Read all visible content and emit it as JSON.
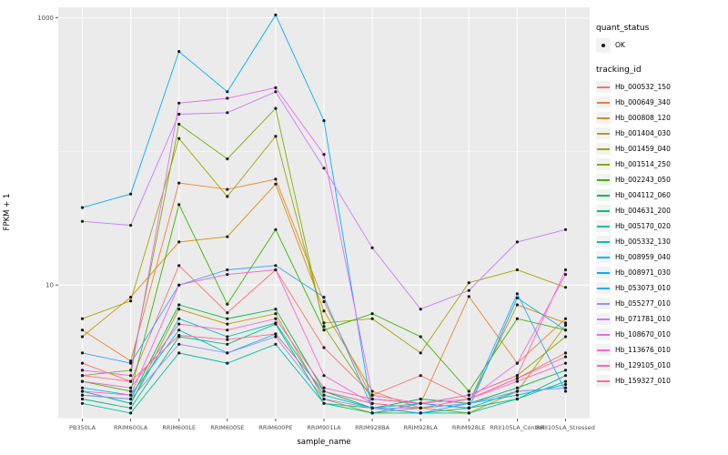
{
  "figure": {
    "bg": "#FFFFFF",
    "panel_bg": "#EBEBEB",
    "grid_color": "#FFFFFF",
    "tick_text_color": "#4D4D4D",
    "point_color": "#1A1A1A"
  },
  "chart_data": {
    "type": "line",
    "title": "",
    "xlabel": "sample_name",
    "ylabel": "FPKM + 1",
    "y_scale": "log10",
    "ylim": [
      1,
      1200
    ],
    "grid": true,
    "legend_position": "right",
    "y_major_ticks": [
      10,
      1000
    ],
    "y_tick_labels": [
      "10",
      "1000"
    ],
    "y_minor_ticks": [
      1,
      100
    ],
    "categories": [
      "PB350LA",
      "RRIM600LA",
      "RRIM600LE",
      "RRIM600SE",
      "RRIM600PE",
      "RRIM901LA",
      "RRIM928BA",
      "RRIM928LA",
      "RRIM928LE",
      "RRII105LA_Control",
      "RRII105LA_Stressed"
    ],
    "series": [
      {
        "name": "Hb_000532_150",
        "color": "#F8766D",
        "values": [
          2.6,
          1.9,
          14,
          6.2,
          13,
          3.4,
          1.5,
          2.1,
          1.4,
          2.0,
          3.1
        ]
      },
      {
        "name": "Hb_000649_340",
        "color": "#EA8331",
        "values": [
          4.6,
          2.7,
          58,
          52,
          62,
          7.5,
          1.4,
          1.3,
          8.2,
          2.6,
          5.6
        ]
      },
      {
        "name": "Hb_000808_120",
        "color": "#D89000",
        "values": [
          4.1,
          8.1,
          21,
          23,
          57,
          6.4,
          1.6,
          1.2,
          1.3,
          7.1,
          5.2
        ]
      },
      {
        "name": "Hb_001404_030",
        "color": "#C09B00",
        "values": [
          1.6,
          1.3,
          6.6,
          5.1,
          6.1,
          1.4,
          1.1,
          1.2,
          1.1,
          1.6,
          5.0
        ]
      },
      {
        "name": "Hb_001459_040",
        "color": "#A3A500",
        "values": [
          5.6,
          7.6,
          125,
          46,
          130,
          5.2,
          5.6,
          3.1,
          10.4,
          13,
          9.6
        ]
      },
      {
        "name": "Hb_001514_250",
        "color": "#7CAE00",
        "values": [
          2.1,
          2.3,
          160,
          88,
          210,
          4.9,
          1.4,
          1.3,
          1.5,
          2.1,
          4.1
        ]
      },
      {
        "name": "Hb_002243_050",
        "color": "#39B600",
        "values": [
          1.9,
          1.6,
          40,
          7.2,
          26,
          4.6,
          6.1,
          4.1,
          1.6,
          5.6,
          4.6
        ]
      },
      {
        "name": "Hb_004112_060",
        "color": "#00BB4E",
        "values": [
          1.5,
          1.4,
          7.1,
          5.6,
          6.6,
          1.6,
          1.2,
          1.4,
          1.3,
          1.7,
          2.3
        ]
      },
      {
        "name": "Hb_004631_200",
        "color": "#00BF7D",
        "values": [
          1.4,
          1.2,
          4.1,
          3.6,
          5.1,
          1.3,
          1.1,
          1.1,
          1.2,
          1.4,
          2.1
        ]
      },
      {
        "name": "Hb_005170_020",
        "color": "#00C1A3",
        "values": [
          1.3,
          1.1,
          3.1,
          2.6,
          3.6,
          1.3,
          1.2,
          1.1,
          1.1,
          1.4,
          1.9
        ]
      },
      {
        "name": "Hb_005332_130",
        "color": "#00BFC4",
        "values": [
          1.6,
          1.3,
          5.6,
          4.1,
          5.2,
          1.5,
          1.2,
          1.3,
          1.2,
          1.6,
          1.7
        ]
      },
      {
        "name": "Hb_008959_040",
        "color": "#00BAE0",
        "values": [
          1.7,
          1.5,
          4.6,
          3.1,
          4.3,
          1.6,
          1.3,
          1.2,
          1.3,
          1.5,
          1.8
        ]
      },
      {
        "name": "Hb_008971_030",
        "color": "#00B0F6",
        "values": [
          38,
          48,
          560,
          280,
          1050,
          170,
          1.1,
          1.3,
          1.2,
          8.0,
          4.6
        ]
      },
      {
        "name": "Hb_053073_010",
        "color": "#35A2FF",
        "values": [
          3.1,
          2.6,
          10,
          13,
          14,
          8.1,
          1.2,
          1.1,
          1.3,
          8.6,
          1.6
        ]
      },
      {
        "name": "Hb_055277_010",
        "color": "#9590FF",
        "values": [
          1.5,
          1.4,
          3.6,
          3.1,
          4.1,
          1.4,
          1.2,
          1.2,
          1.3,
          1.6,
          1.7
        ]
      },
      {
        "name": "Hb_071781_010",
        "color": "#C77CFF",
        "values": [
          30,
          28,
          190,
          195,
          280,
          75,
          19,
          6.6,
          9.1,
          21,
          26
        ]
      },
      {
        "name": "Hb_108670_010",
        "color": "#E76BF3",
        "values": [
          2.3,
          2.1,
          230,
          250,
          300,
          95,
          1.5,
          1.3,
          1.4,
          2.6,
          12
        ]
      },
      {
        "name": "Hb_113676_010",
        "color": "#FA62DB",
        "values": [
          1.6,
          1.5,
          10,
          12,
          13,
          2.1,
          1.3,
          1.2,
          1.4,
          1.9,
          2.6
        ]
      },
      {
        "name": "Hb_129105_010",
        "color": "#FF62BC",
        "values": [
          1.9,
          1.7,
          5.1,
          4.6,
          5.6,
          1.7,
          1.4,
          1.3,
          1.5,
          2.1,
          13
        ]
      },
      {
        "name": "Hb_159327_010",
        "color": "#FF6A98",
        "values": [
          2.1,
          1.9,
          4.2,
          3.9,
          4.3,
          1.6,
          1.3,
          1.2,
          1.4,
          2.0,
          2.9
        ]
      }
    ]
  },
  "legend": {
    "quant_status": {
      "title": "quant_status",
      "items": [
        {
          "label": "OK",
          "symbol": "point"
        }
      ]
    },
    "tracking_id": {
      "title": "tracking_id"
    }
  }
}
